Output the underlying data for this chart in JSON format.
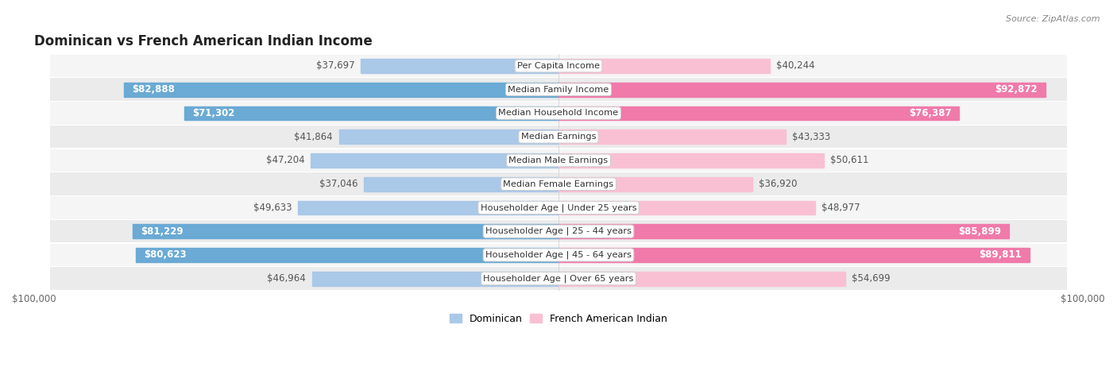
{
  "title": "Dominican vs French American Indian Income",
  "source": "Source: ZipAtlas.com",
  "categories": [
    "Per Capita Income",
    "Median Family Income",
    "Median Household Income",
    "Median Earnings",
    "Median Male Earnings",
    "Median Female Earnings",
    "Householder Age | Under 25 years",
    "Householder Age | 25 - 44 years",
    "Householder Age | 45 - 64 years",
    "Householder Age | Over 65 years"
  ],
  "dominican_values": [
    37697,
    82888,
    71302,
    41864,
    47204,
    37046,
    49633,
    81229,
    80623,
    46964
  ],
  "french_values": [
    40244,
    92872,
    76387,
    43333,
    50611,
    36920,
    48977,
    85899,
    89811,
    54699
  ],
  "dominican_labels": [
    "$37,697",
    "$82,888",
    "$71,302",
    "$41,864",
    "$47,204",
    "$37,046",
    "$49,633",
    "$81,229",
    "$80,623",
    "$46,964"
  ],
  "french_labels": [
    "$40,244",
    "$92,872",
    "$76,387",
    "$43,333",
    "$50,611",
    "$36,920",
    "$48,977",
    "$85,899",
    "$89,811",
    "$54,699"
  ],
  "max_value": 100000,
  "color_dominican_light": "#aac8e8",
  "color_dominican_dark": "#6aaad4",
  "color_french_light": "#f9c0d4",
  "color_french_dark": "#f07aaa",
  "threshold_inside": 58000,
  "label_fontsize": 8.5,
  "title_fontsize": 12,
  "source_fontsize": 8
}
